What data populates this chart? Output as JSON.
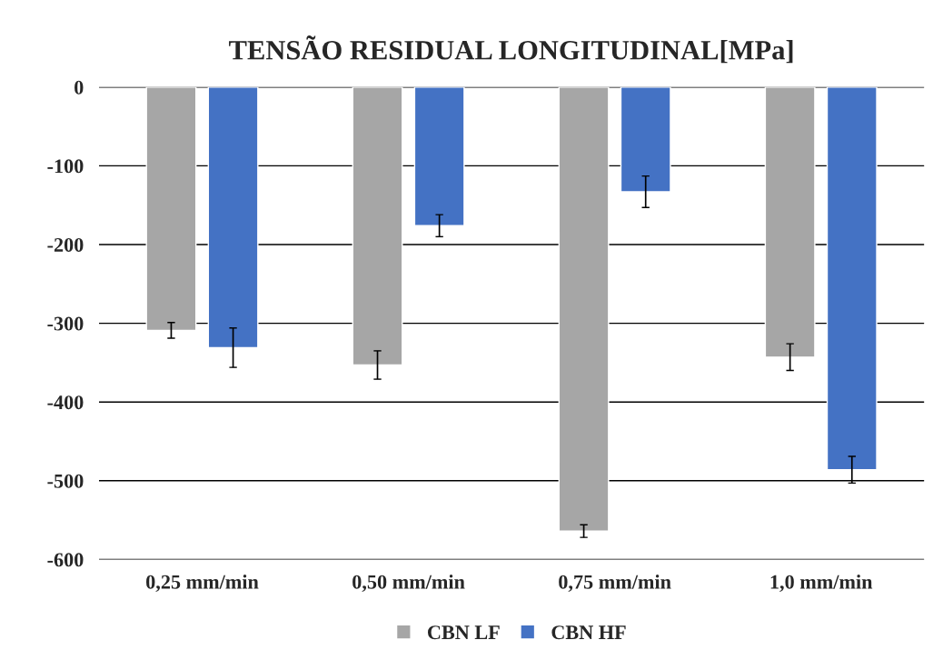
{
  "chart_data": {
    "type": "bar",
    "title": "TENSÃO RESIDUAL LONGITUDINAL[MPa]",
    "categories": [
      "0,25 mm/min",
      "0,50 mm/min",
      "0,75 mm/min",
      "1,0 mm/min"
    ],
    "series": [
      {
        "name": "CBN LF",
        "color": "#a6a6a6",
        "values": [
          -309,
          -353,
          -564,
          -343
        ],
        "errors": [
          10,
          18,
          8,
          17
        ]
      },
      {
        "name": "CBN HF",
        "color": "#4472c4",
        "values": [
          -331,
          -176,
          -133,
          -486
        ],
        "errors": [
          25,
          14,
          20,
          17
        ]
      }
    ],
    "ylim": [
      -600,
      0
    ],
    "yticks": [
      -600,
      -500,
      -400,
      -300,
      -200,
      -100,
      0
    ],
    "grid": "y",
    "legend": "bottom"
  }
}
